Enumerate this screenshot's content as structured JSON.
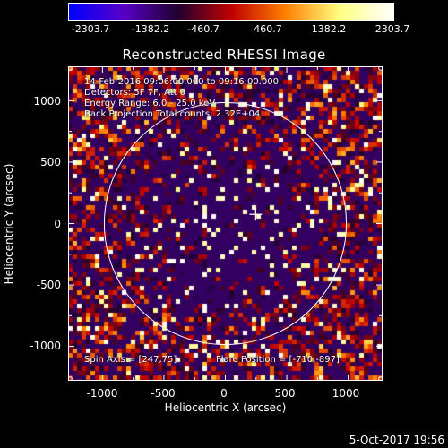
{
  "colorbar": {
    "ticks": [
      "-2303.7",
      "-1382.2",
      "-460.7",
      "460.7",
      "1382.2",
      "2303.7"
    ],
    "colors": [
      "#0000ff",
      "#5a00c8",
      "#200030",
      "#c00000",
      "#ff8000",
      "#ffff80",
      "#ffffff"
    ]
  },
  "chart_data": {
    "type": "heatmap",
    "title": "Reconstructed RHESSI Image",
    "xlabel": "Heliocentric X (arcsec)",
    "ylabel": "Heliocentric Y (arcsec)",
    "xlim": [
      -1280,
      1280
    ],
    "ylim": [
      -1280,
      1280
    ],
    "x_ticks": [
      "-1000",
      "-500",
      "0",
      "500",
      "1000"
    ],
    "y_ticks": [
      "1000",
      "500",
      "0",
      "-500",
      "-1000"
    ],
    "zlim": [
      -2303.7,
      2303.7
    ],
    "solar_limb_radius": 985,
    "cross_marker": [
      247,
      75
    ]
  },
  "annotations": {
    "time_range": "14-Feb-2016 09:06:00.000 to 09:16:00.000",
    "detectors": "Detectors: 5F 7F, Att 0",
    "energy": "Energy Range: 6.0 - 25.0 keV",
    "method": "Back Projection   Total counts: 2.32E+04",
    "spin_axis": "Spin Axis = [247,75]",
    "flare_position": "Flare Position = [-710,-897]"
  },
  "footer": {
    "date": "5-Oct-2017 19:56"
  }
}
